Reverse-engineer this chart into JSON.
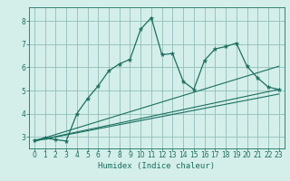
{
  "title": "",
  "xlabel": "Humidex (Indice chaleur)",
  "bg_color": "#d4eeea",
  "grid_color": "#90bdb8",
  "line_color": "#1a7060",
  "spine_color": "#1a7060",
  "xlim": [
    -0.5,
    23.5
  ],
  "ylim": [
    2.5,
    8.6
  ],
  "xticks": [
    0,
    1,
    2,
    3,
    4,
    5,
    6,
    7,
    8,
    9,
    10,
    11,
    12,
    13,
    14,
    15,
    16,
    17,
    18,
    19,
    20,
    21,
    22,
    23
  ],
  "yticks": [
    3,
    4,
    5,
    6,
    7,
    8
  ],
  "main_x": [
    0,
    1,
    2,
    3,
    4,
    5,
    6,
    7,
    8,
    9,
    10,
    11,
    12,
    13,
    14,
    15,
    16,
    17,
    18,
    19,
    20,
    21,
    22,
    23
  ],
  "main_y": [
    2.85,
    2.95,
    2.88,
    2.82,
    4.0,
    4.65,
    5.2,
    5.85,
    6.15,
    6.35,
    7.65,
    8.15,
    6.55,
    6.6,
    5.4,
    5.05,
    6.3,
    6.8,
    6.9,
    7.05,
    6.05,
    5.55,
    5.15,
    5.05
  ],
  "line1_x": [
    0,
    23
  ],
  "line1_y": [
    2.82,
    5.05
  ],
  "line2_x": [
    0,
    23
  ],
  "line2_y": [
    2.82,
    6.05
  ],
  "line3_x": [
    0,
    23
  ],
  "line3_y": [
    2.82,
    4.85
  ],
  "tick_fontsize": 5.5,
  "xlabel_fontsize": 6.5
}
